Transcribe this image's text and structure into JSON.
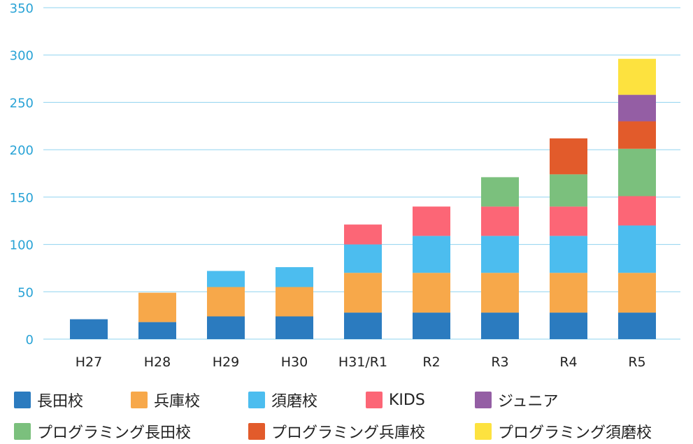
{
  "chart_data": {
    "type": "bar",
    "stacked": true,
    "title": "",
    "xlabel": "",
    "ylabel": "",
    "ylim": [
      0,
      350
    ],
    "yticks": [
      0,
      50,
      100,
      150,
      200,
      250,
      300,
      350
    ],
    "grid": true,
    "legend_position": "bottom",
    "categories": [
      "H27",
      "H28",
      "H29",
      "H30",
      "H31/R1",
      "R2",
      "R3",
      "R4",
      "R5"
    ],
    "series": [
      {
        "name": "長田校",
        "color": "#2b7bbf",
        "values": [
          21,
          18,
          24,
          24,
          28,
          28,
          28,
          28,
          28
        ]
      },
      {
        "name": "兵庫校",
        "color": "#f7a84a",
        "values": [
          0,
          31,
          31,
          31,
          42,
          42,
          42,
          42,
          42
        ]
      },
      {
        "name": "須磨校",
        "color": "#4cbdef",
        "values": [
          0,
          0,
          17,
          21,
          30,
          39,
          39,
          39,
          50
        ]
      },
      {
        "name": "KIDS",
        "color": "#fc6676",
        "values": [
          0,
          0,
          0,
          0,
          21,
          31,
          31,
          31,
          31
        ]
      },
      {
        "name": "プログラミング長田校",
        "color": "#7bc07d",
        "values": [
          0,
          0,
          0,
          0,
          0,
          0,
          31,
          34,
          50
        ]
      },
      {
        "name": "プログラミング兵庫校",
        "color": "#e25b2b",
        "values": [
          0,
          0,
          0,
          0,
          0,
          0,
          0,
          38,
          29
        ]
      },
      {
        "name": "ジュニア",
        "color": "#945ea4",
        "values": [
          0,
          0,
          0,
          0,
          0,
          0,
          0,
          0,
          28
        ]
      },
      {
        "name": "プログラミング須磨校",
        "color": "#fde23f",
        "values": [
          0,
          0,
          0,
          0,
          0,
          0,
          0,
          0,
          38
        ]
      }
    ],
    "colors": {
      "grid": "#8fd3ef",
      "ytick": "#29a3d6",
      "xtick": "#222222"
    }
  },
  "legend": [
    {
      "label": "長田校",
      "color": "#2b7bbf"
    },
    {
      "label": "兵庫校",
      "color": "#f7a84a"
    },
    {
      "label": "須磨校",
      "color": "#4cbdef"
    },
    {
      "label": "KIDS",
      "color": "#fc6676"
    },
    {
      "label": "ジュニア",
      "color": "#945ea4"
    },
    {
      "label": "プログラミング長田校",
      "color": "#7bc07d"
    },
    {
      "label": "プログラミング兵庫校",
      "color": "#e25b2b"
    },
    {
      "label": "プログラミング須磨校",
      "color": "#fde23f"
    }
  ]
}
